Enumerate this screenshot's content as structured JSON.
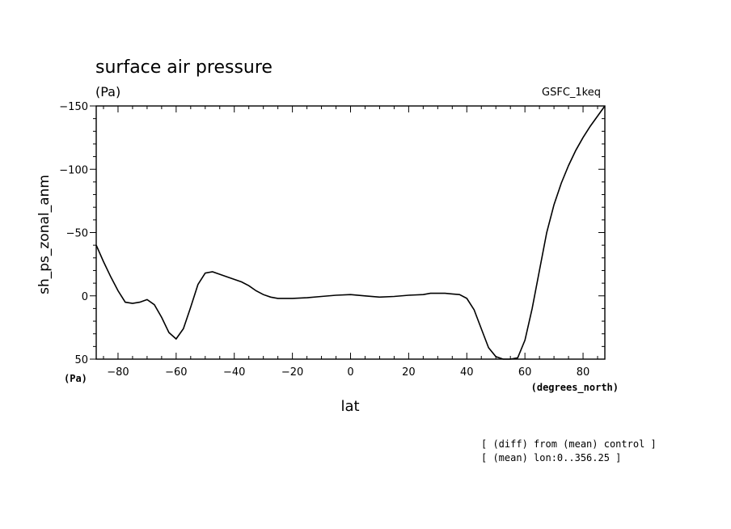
{
  "chart_data": {
    "type": "line",
    "title": "surface air pressure",
    "units": "(Pa)",
    "model_label": "GSFC_1keq",
    "ylabel": "sh_ps_zonal_anm",
    "y_units": "(Pa)",
    "xlabel": "lat",
    "x_units": "(degrees_north)",
    "xlim": [
      -87.5,
      87.5
    ],
    "ylim": [
      50,
      -150
    ],
    "x_ticks": [
      -80,
      -60,
      -40,
      -20,
      0,
      20,
      40,
      60,
      80
    ],
    "x_tick_labels": [
      "−80",
      "−60",
      "−40",
      "−20",
      "0",
      "20",
      "40",
      "60",
      "80"
    ],
    "y_ticks": [
      -150,
      -100,
      -50,
      0,
      50
    ],
    "y_tick_labels": [
      "−150",
      "−100",
      "−50",
      "0",
      "50"
    ],
    "grid": false,
    "notes": [
      "[ (diff) from (mean) control ]",
      "[ (mean) lon:0..356.25 ]"
    ],
    "series": [
      {
        "x": [
          -87.5,
          -85,
          -82.5,
          -80,
          -77.5,
          -75,
          -72.5,
          -70,
          -67.5,
          -65,
          -62.5,
          -60,
          -57.5,
          -55,
          -52.5,
          -50,
          -47.5,
          -45,
          -42.5,
          -40,
          -37.5,
          -35,
          -32.5,
          -30,
          -27.5,
          -25,
          -22.5,
          -20,
          -15,
          -10,
          -5,
          0,
          5,
          10,
          15,
          20,
          25,
          27.5,
          30,
          32.5,
          35,
          37.5,
          40,
          42.5,
          45,
          47.5,
          50,
          52.5,
          55,
          57.5,
          60,
          62.5,
          65,
          67.5,
          70,
          72.5,
          75,
          77.5,
          80,
          82.5,
          85,
          87.5
        ],
        "values": [
          -40,
          -27,
          -15,
          -4,
          5,
          6,
          5,
          3,
          7,
          17,
          29,
          34,
          26,
          9,
          -9,
          -18,
          -19,
          -17,
          -15,
          -13,
          -11,
          -8,
          -4,
          -1,
          1,
          2,
          2,
          2,
          1.5,
          0.5,
          -0.5,
          -1,
          0,
          1,
          0.5,
          -0.5,
          -1,
          -2,
          -2,
          -2,
          -1.5,
          -1,
          2,
          11,
          26,
          41,
          48,
          51,
          51,
          49,
          35,
          10,
          -20,
          -50,
          -72,
          -89,
          -103,
          -115,
          -125,
          -134,
          -142,
          -151
        ]
      }
    ]
  }
}
